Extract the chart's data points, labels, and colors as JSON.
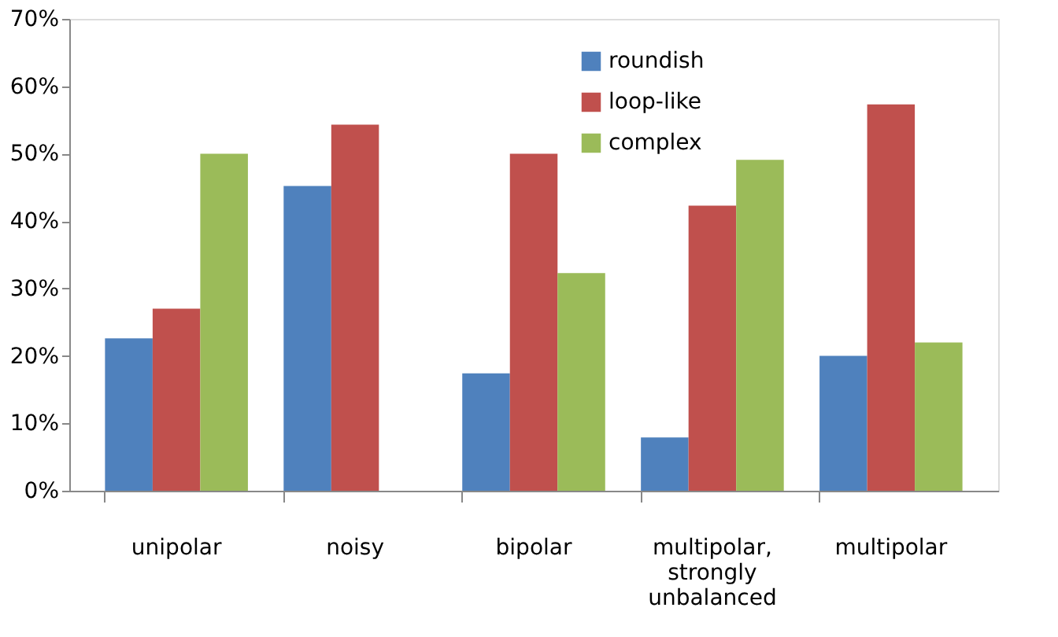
{
  "chart_data": {
    "type": "bar",
    "categories": [
      "unipolar",
      "noisy",
      "bipolar",
      "multipolar, strongly unbalanced",
      "multipolar"
    ],
    "series": [
      {
        "name": "roundish",
        "color": "#4f81bd",
        "values": [
          22.6,
          45.2,
          17.4,
          7.9,
          20.0
        ]
      },
      {
        "name": "loop-like",
        "color": "#c0504d",
        "values": [
          27.0,
          54.3,
          50.0,
          42.3,
          57.3
        ]
      },
      {
        "name": "complex",
        "color": "#9bbb59",
        "values": [
          50.0,
          0,
          32.3,
          49.1,
          22.0
        ]
      }
    ],
    "ylim": [
      0,
      70
    ],
    "yticks": [
      {
        "value": 0,
        "label": "0%"
      },
      {
        "value": 10,
        "label": "10%"
      },
      {
        "value": 20,
        "label": "20%"
      },
      {
        "value": 30,
        "label": "30%"
      },
      {
        "value": 40,
        "label": "40%"
      },
      {
        "value": 50,
        "label": "50%"
      },
      {
        "value": 60,
        "label": "60%"
      },
      {
        "value": 70,
        "label": "70%"
      }
    ],
    "grid": false,
    "legend": "top"
  }
}
